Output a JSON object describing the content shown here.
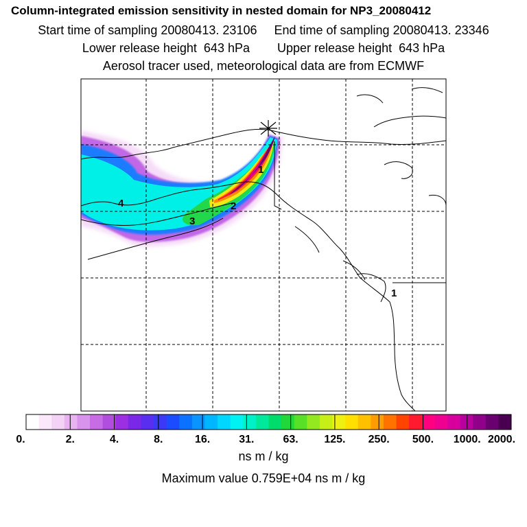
{
  "header": {
    "title": "Column-integrated emission sensitivity in nested domain for NP3_20080412",
    "line2": "Start time of sampling 20080413. 23106     End time of sampling 20080413. 23346",
    "line3": "Lower release height  643 hPa        Upper release height  643 hPa",
    "line4": "Aerosol tracer used, meteorological data are from ECMWF"
  },
  "map": {
    "release_marker": "asterisk-star",
    "contour_labels": [
      "1",
      "2",
      "3",
      "4",
      "1"
    ],
    "land_color": "#ffffff",
    "grid": "dashed"
  },
  "colorbar": {
    "tick_labels": [
      "0.",
      "2.",
      "4.",
      "8.",
      "16.",
      "31.",
      "63.",
      "125.",
      "250.",
      "500.",
      "1000.",
      "2000."
    ],
    "colors": [
      "#ffffff",
      "#fbe8fb",
      "#f4d2f6",
      "#e8b4f0",
      "#d894ec",
      "#c86ce6",
      "#b14ee0",
      "#9c2fe2",
      "#7a28e8",
      "#5a2ef0",
      "#3b38f6",
      "#1c4cff",
      "#0a72ff",
      "#0a94ff",
      "#00b6ff",
      "#00d6ff",
      "#00f2f2",
      "#00f0c8",
      "#00e89c",
      "#00dc6c",
      "#20d838",
      "#58e028",
      "#94e820",
      "#c8ee18",
      "#eef010",
      "#ffe000",
      "#ffc000",
      "#ff9c00",
      "#ff7200",
      "#ff4400",
      "#ff1a30",
      "#ff0080",
      "#f00090",
      "#d8009c",
      "#b800a0",
      "#90008a",
      "#6a0070",
      "#4a0050"
    ]
  },
  "units": "ns m / kg",
  "max_value": "Maximum value  0.759E+04 ns m / kg"
}
